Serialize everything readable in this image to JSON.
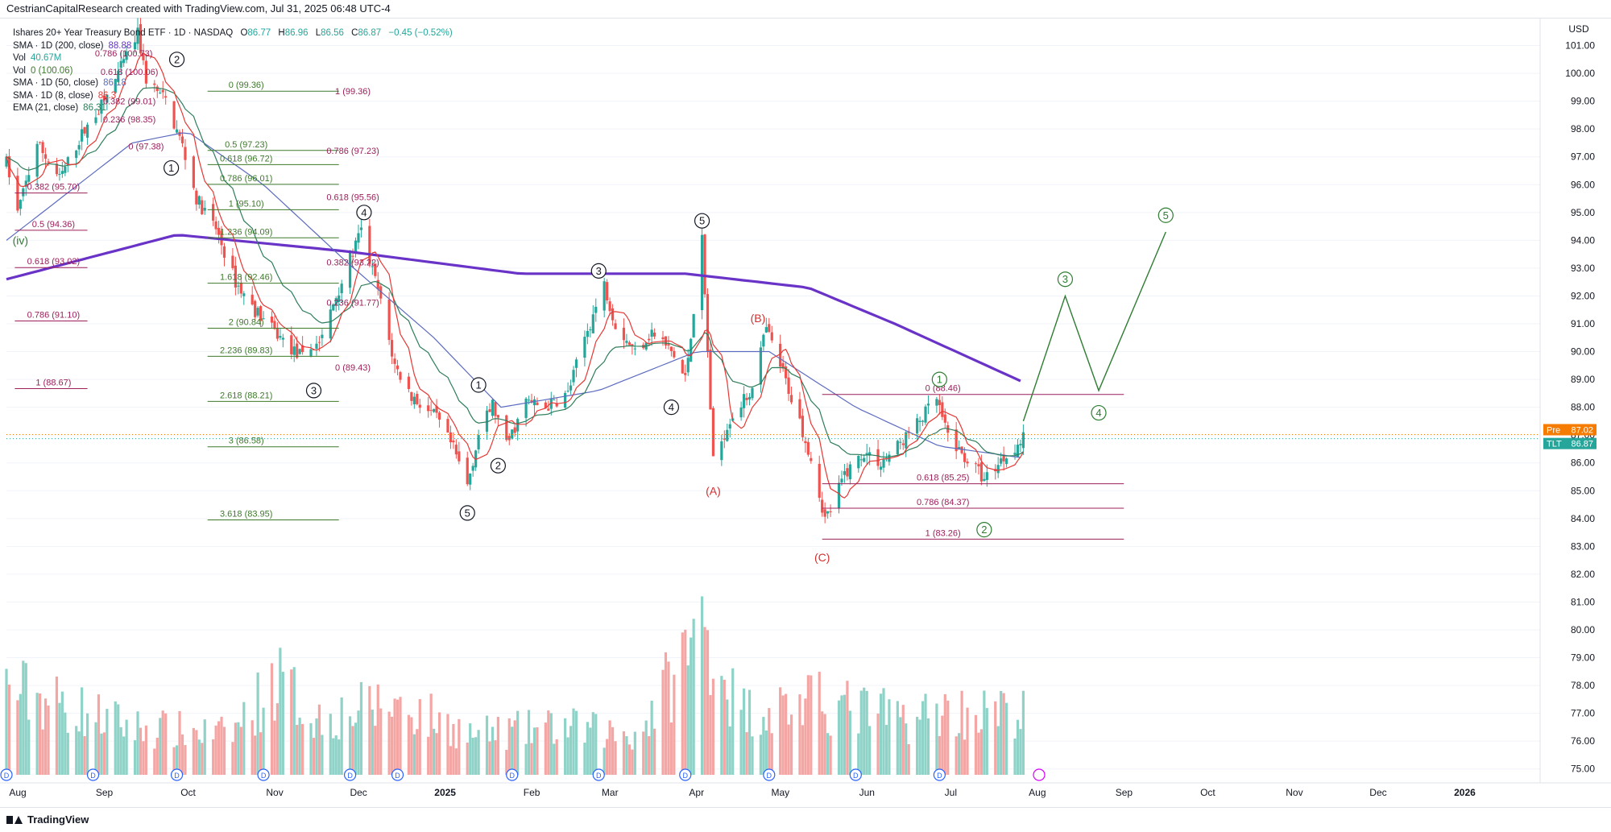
{
  "header": {
    "credit": "CestrianCapitalResearch created with TradingView.com, Jul 31, 2025 06:48 UTC-4"
  },
  "footer": {
    "brand": "TradingView"
  },
  "colors": {
    "up": "#26a69a",
    "down": "#ef5350",
    "sma200": "#6a33c8",
    "sma50": "#5c6bc0",
    "sma8": "#e53935",
    "ema21": "#2e7d5b",
    "fib_green": "#3d7a2a",
    "fib_purple": "#9c1f5a",
    "wave_green": "#2e7d32",
    "wave_red": "#d32f2f"
  },
  "legend": {
    "title": "Ishares 20+ Year Treasury Bond ETF · 1D · NASDAQ",
    "ohlc": {
      "o_label": "O",
      "o": "86.77",
      "h_label": "H",
      "h": "86.96",
      "l_label": "L",
      "l": "86.56",
      "c_label": "C",
      "c": "86.87",
      "chg": "−0.45 (−0.52%)"
    },
    "indicators": [
      {
        "label": "SMA · 1D (200, close)",
        "value": "88.88",
        "color": "#6a33c8"
      },
      {
        "label": "Vol",
        "value": "40.67M",
        "color": "#26a69a"
      },
      {
        "label": "Vol",
        "value": "0 (100.06)",
        "color": "#3d7a2a"
      },
      {
        "label": "SMA · 1D (50, close)",
        "value": "86.18",
        "color": "#5c6bc0"
      },
      {
        "label": "SMA · 1D (8, close)",
        "value": "86.3",
        "color": "#e53935"
      },
      {
        "label": "EMA (21, close)",
        "value": "86.31",
        "color": "#2e7d5b"
      }
    ]
  },
  "chart_data": {
    "type": "candlestick",
    "symbol": "TLT",
    "currency_label": "USD",
    "ylim": [
      74.5,
      102.0
    ],
    "y_ticks": [
      "75.00",
      "76.00",
      "77.00",
      "78.00",
      "79.00",
      "80.00",
      "81.00",
      "82.00",
      "83.00",
      "84.00",
      "85.00",
      "86.00",
      "87.00",
      "88.00",
      "89.00",
      "90.00",
      "91.00",
      "92.00",
      "93.00",
      "94.00",
      "95.00",
      "96.00",
      "97.00",
      "98.00",
      "99.00",
      "100.00",
      "101.00"
    ],
    "x_tick_labels": [
      "Aug",
      "Sep",
      "Oct",
      "Nov",
      "Dec",
      "2025",
      "Feb",
      "Mar",
      "Apr",
      "May",
      "Jun",
      "Jul",
      "Aug",
      "Sep",
      "Oct",
      "Nov",
      "Dec",
      "2026"
    ],
    "x_start": "2024-08-01",
    "x_end": "2026-02-01",
    "last_close": 86.87,
    "price_tags": [
      {
        "label": "Pre",
        "value": "87.02",
        "price": 87.02,
        "color": "#f57c00"
      },
      {
        "label": "TLT",
        "value": "86.87",
        "price": 86.87,
        "color": "#26a69a"
      }
    ],
    "price_waypoints": [
      [
        "2024-08-01",
        96.8
      ],
      [
        "2024-08-05",
        95.0
      ],
      [
        "2024-08-12",
        97.5
      ],
      [
        "2024-08-20",
        96.2
      ],
      [
        "2024-08-28",
        97.8
      ],
      [
        "2024-09-05",
        99.0
      ],
      [
        "2024-09-12",
        100.4
      ],
      [
        "2024-09-17",
        101.4
      ],
      [
        "2024-09-20",
        99.8
      ],
      [
        "2024-09-27",
        99.0
      ],
      [
        "2024-10-03",
        97.4
      ],
      [
        "2024-10-08",
        95.5
      ],
      [
        "2024-10-15",
        94.4
      ],
      [
        "2024-10-22",
        92.5
      ],
      [
        "2024-10-28",
        91.6
      ],
      [
        "2024-11-05",
        90.7
      ],
      [
        "2024-11-12",
        90.0
      ],
      [
        "2024-11-15",
        89.8
      ],
      [
        "2024-11-22",
        90.5
      ],
      [
        "2024-11-27",
        92.0
      ],
      [
        "2024-12-03",
        93.6
      ],
      [
        "2024-12-06",
        94.3
      ],
      [
        "2024-12-12",
        92.2
      ],
      [
        "2024-12-18",
        89.5
      ],
      [
        "2024-12-24",
        88.4
      ],
      [
        "2025-01-02",
        87.6
      ],
      [
        "2025-01-08",
        86.5
      ],
      [
        "2025-01-13",
        85.2
      ],
      [
        "2025-01-17",
        87.0
      ],
      [
        "2025-01-22",
        88.1
      ],
      [
        "2025-01-27",
        86.6
      ],
      [
        "2025-02-03",
        88.2
      ],
      [
        "2025-02-10",
        88.0
      ],
      [
        "2025-02-18",
        88.5
      ],
      [
        "2025-02-24",
        90.5
      ],
      [
        "2025-03-03",
        92.4
      ],
      [
        "2025-03-07",
        91.0
      ],
      [
        "2025-03-14",
        90.0
      ],
      [
        "2025-03-20",
        90.7
      ],
      [
        "2025-03-27",
        90.0
      ],
      [
        "2025-04-01",
        89.0
      ],
      [
        "2025-04-04",
        91.5
      ],
      [
        "2025-04-07",
        94.0
      ],
      [
        "2025-04-09",
        90.0
      ],
      [
        "2025-04-11",
        86.0
      ],
      [
        "2025-04-17",
        87.6
      ],
      [
        "2025-04-24",
        88.5
      ],
      [
        "2025-04-30",
        90.8
      ],
      [
        "2025-05-05",
        89.5
      ],
      [
        "2025-05-12",
        87.5
      ],
      [
        "2025-05-16",
        86.2
      ],
      [
        "2025-05-21",
        84.0
      ],
      [
        "2025-05-23",
        84.3
      ],
      [
        "2025-05-28",
        85.6
      ],
      [
        "2025-06-04",
        86.4
      ],
      [
        "2025-06-10",
        86.0
      ],
      [
        "2025-06-16",
        86.6
      ],
      [
        "2025-06-23",
        87.4
      ],
      [
        "2025-06-30",
        88.3
      ],
      [
        "2025-07-03",
        87.2
      ],
      [
        "2025-07-08",
        86.4
      ],
      [
        "2025-07-14",
        85.8
      ],
      [
        "2025-07-17",
        85.4
      ],
      [
        "2025-07-22",
        86.0
      ],
      [
        "2025-07-28",
        86.6
      ],
      [
        "2025-07-31",
        86.87
      ]
    ],
    "volume_waypoints": [
      [
        "2024-08-01",
        0.55
      ],
      [
        "2024-09-15",
        0.3
      ],
      [
        "2024-10-20",
        0.25
      ],
      [
        "2024-11-06",
        0.6
      ],
      [
        "2024-11-20",
        0.35
      ],
      [
        "2024-12-18",
        0.45
      ],
      [
        "2025-01-15",
        0.25
      ],
      [
        "2025-02-15",
        0.3
      ],
      [
        "2025-03-15",
        0.25
      ],
      [
        "2025-04-08",
        0.95
      ],
      [
        "2025-04-20",
        0.4
      ],
      [
        "2025-05-20",
        0.45
      ],
      [
        "2025-06-20",
        0.35
      ],
      [
        "2025-07-01",
        0.4
      ],
      [
        "2025-07-31",
        0.38
      ]
    ],
    "sma200_waypoints": [
      [
        "2024-08-01",
        92.6
      ],
      [
        "2024-10-01",
        94.2
      ],
      [
        "2024-12-01",
        93.6
      ],
      [
        "2025-02-01",
        92.8
      ],
      [
        "2025-04-01",
        92.8
      ],
      [
        "2025-05-15",
        92.3
      ],
      [
        "2025-06-15",
        91.0
      ],
      [
        "2025-07-31",
        88.9
      ]
    ],
    "sma50_waypoints": [
      [
        "2024-08-01",
        94.0
      ],
      [
        "2024-09-15",
        97.5
      ],
      [
        "2024-10-05",
        97.9
      ],
      [
        "2024-11-01",
        96.0
      ],
      [
        "2024-12-01",
        93.2
      ],
      [
        "2025-01-01",
        90.5
      ],
      [
        "2025-01-25",
        88.0
      ],
      [
        "2025-03-01",
        88.6
      ],
      [
        "2025-04-05",
        90.0
      ],
      [
        "2025-05-01",
        90.0
      ],
      [
        "2025-06-01",
        88.0
      ],
      [
        "2025-07-01",
        86.6
      ],
      [
        "2025-07-31",
        86.18
      ]
    ],
    "projection_path": [
      [
        "2025-07-31",
        87.5
      ],
      [
        "2025-08-15",
        92.0
      ],
      [
        "2025-08-27",
        88.6
      ],
      [
        "2025-09-20",
        94.3
      ]
    ],
    "dividend_dates": [
      "2024-08-01",
      "2024-09-01",
      "2024-10-01",
      "2024-11-01",
      "2024-12-02",
      "2024-12-19",
      "2025-01-29",
      "2025-03-01",
      "2025-04-01",
      "2025-05-01",
      "2025-06-01",
      "2025-07-01"
    ],
    "fib_sets": [
      {
        "color": "#3d7a2a",
        "x1": "2024-10-12",
        "x2": "2024-11-28",
        "levels": [
          {
            "price": 99.36,
            "label": "0 (99.36)"
          },
          {
            "price": 97.23,
            "label": "0.5 (97.23)"
          },
          {
            "price": 96.72,
            "label": "0.618 (96.72)"
          },
          {
            "price": 96.01,
            "label": "0.786 (96.01)"
          },
          {
            "price": 95.1,
            "label": "1 (95.10)"
          },
          {
            "price": 94.09,
            "label": "1.236 (94.09)"
          },
          {
            "price": 92.46,
            "label": "1.618 (92.46)"
          },
          {
            "price": 90.84,
            "label": "2 (90.84)"
          },
          {
            "price": 89.83,
            "label": "2.236 (89.83)"
          },
          {
            "price": 88.21,
            "label": "2.618 (88.21)"
          },
          {
            "price": 86.58,
            "label": "3 (86.58)"
          },
          {
            "price": 83.95,
            "label": "3.618 (83.95)"
          }
        ]
      },
      {
        "color": "#9c1f5a",
        "x1": "2025-05-20",
        "x2": "2025-09-05",
        "levels": [
          {
            "price": 88.46,
            "label": "0 (88.46)"
          },
          {
            "price": 85.25,
            "label": "0.618 (85.25)"
          },
          {
            "price": 84.37,
            "label": "0.786 (84.37)"
          },
          {
            "price": 83.26,
            "label": "1 (83.26)"
          }
        ]
      },
      {
        "color": "#9c1f5a",
        "x1": "2024-08-04",
        "x2": "2024-08-30",
        "levels": [
          {
            "price": 95.7,
            "label": "0.382 (95.70)"
          },
          {
            "price": 94.36,
            "label": "0.5 (94.36)"
          },
          {
            "price": 93.02,
            "label": "0.618 (93.02)"
          },
          {
            "price": 91.1,
            "label": "0.786 (91.10)"
          },
          {
            "price": 88.67,
            "label": "1 (88.67)"
          }
        ]
      }
    ],
    "text_annotations": [
      {
        "text": "1 (99.36)",
        "date": "2024-12-03",
        "price": 99.36,
        "color": "#9c1f5a"
      },
      {
        "text": "0.786 (97.23)",
        "date": "2024-12-03",
        "price": 97.23,
        "color": "#9c1f5a"
      },
      {
        "text": "0.618 (95.56)",
        "date": "2024-12-03",
        "price": 95.56,
        "color": "#9c1f5a"
      },
      {
        "text": "0.382 (93.22)",
        "date": "2024-12-03",
        "price": 93.22,
        "color": "#9c1f5a"
      },
      {
        "text": "0.236 (91.77)",
        "date": "2024-12-03",
        "price": 91.77,
        "color": "#9c1f5a"
      },
      {
        "text": "0 (89.43)",
        "date": "2024-12-03",
        "price": 89.43,
        "color": "#9c1f5a"
      },
      {
        "text": "0.786 (100.73)",
        "date": "2024-09-12",
        "price": 100.73,
        "color": "#9c1f5a"
      },
      {
        "text": "0.618 (100.06)",
        "date": "2024-09-14",
        "price": 100.06,
        "color": "#9c1f5a"
      },
      {
        "text": "0.382 (99.01)",
        "date": "2024-09-14",
        "price": 99.01,
        "color": "#9c1f5a"
      },
      {
        "text": "0.236 (98.35)",
        "date": "2024-09-14",
        "price": 98.35,
        "color": "#9c1f5a"
      },
      {
        "text": "0 (97.38)",
        "date": "2024-09-20",
        "price": 97.38,
        "color": "#9c1f5a"
      }
    ],
    "wave_labels": [
      {
        "text": "1",
        "date": "2024-09-29",
        "price": 96.6,
        "color": "#131722",
        "circled": true
      },
      {
        "text": "2",
        "date": "2024-10-01",
        "price": 100.5,
        "color": "#131722",
        "circled": true
      },
      {
        "text": "3",
        "date": "2024-11-19",
        "price": 88.6,
        "color": "#131722",
        "circled": true
      },
      {
        "text": "4",
        "date": "2024-12-07",
        "price": 95.0,
        "color": "#131722",
        "circled": true
      },
      {
        "text": "5",
        "date": "2025-01-13",
        "price": 84.2,
        "color": "#131722",
        "circled": true
      },
      {
        "text": "1",
        "date": "2025-01-17",
        "price": 88.8,
        "color": "#131722",
        "circled": true
      },
      {
        "text": "2",
        "date": "2025-01-24",
        "price": 85.9,
        "color": "#131722",
        "circled": true
      },
      {
        "text": "3",
        "date": "2025-03-01",
        "price": 92.9,
        "color": "#131722",
        "circled": true
      },
      {
        "text": "4",
        "date": "2025-03-27",
        "price": 88.0,
        "color": "#131722",
        "circled": true
      },
      {
        "text": "5",
        "date": "2025-04-07",
        "price": 94.7,
        "color": "#131722",
        "circled": true
      },
      {
        "text": "(A)",
        "date": "2025-04-11",
        "price": 85.0,
        "color": "#d32f2f",
        "circled": false
      },
      {
        "text": "(B)",
        "date": "2025-04-27",
        "price": 91.2,
        "color": "#d32f2f",
        "circled": false
      },
      {
        "text": "(C)",
        "date": "2025-05-20",
        "price": 82.6,
        "color": "#d32f2f",
        "circled": false
      },
      {
        "text": "1",
        "date": "2025-07-01",
        "price": 89.0,
        "color": "#2e7d32",
        "circled": true
      },
      {
        "text": "2",
        "date": "2025-07-17",
        "price": 83.6,
        "color": "#2e7d32",
        "circled": true
      },
      {
        "text": "3",
        "date": "2025-08-15",
        "price": 92.6,
        "color": "#2e7d32",
        "circled": true
      },
      {
        "text": "4",
        "date": "2025-08-27",
        "price": 87.8,
        "color": "#2e7d32",
        "circled": true
      },
      {
        "text": "5",
        "date": "2025-09-20",
        "price": 94.9,
        "color": "#2e7d32",
        "circled": true
      },
      {
        "text": "(iv)",
        "date": "2024-08-06",
        "price": 94.0,
        "color": "#2e7d32",
        "circled": false
      }
    ]
  }
}
